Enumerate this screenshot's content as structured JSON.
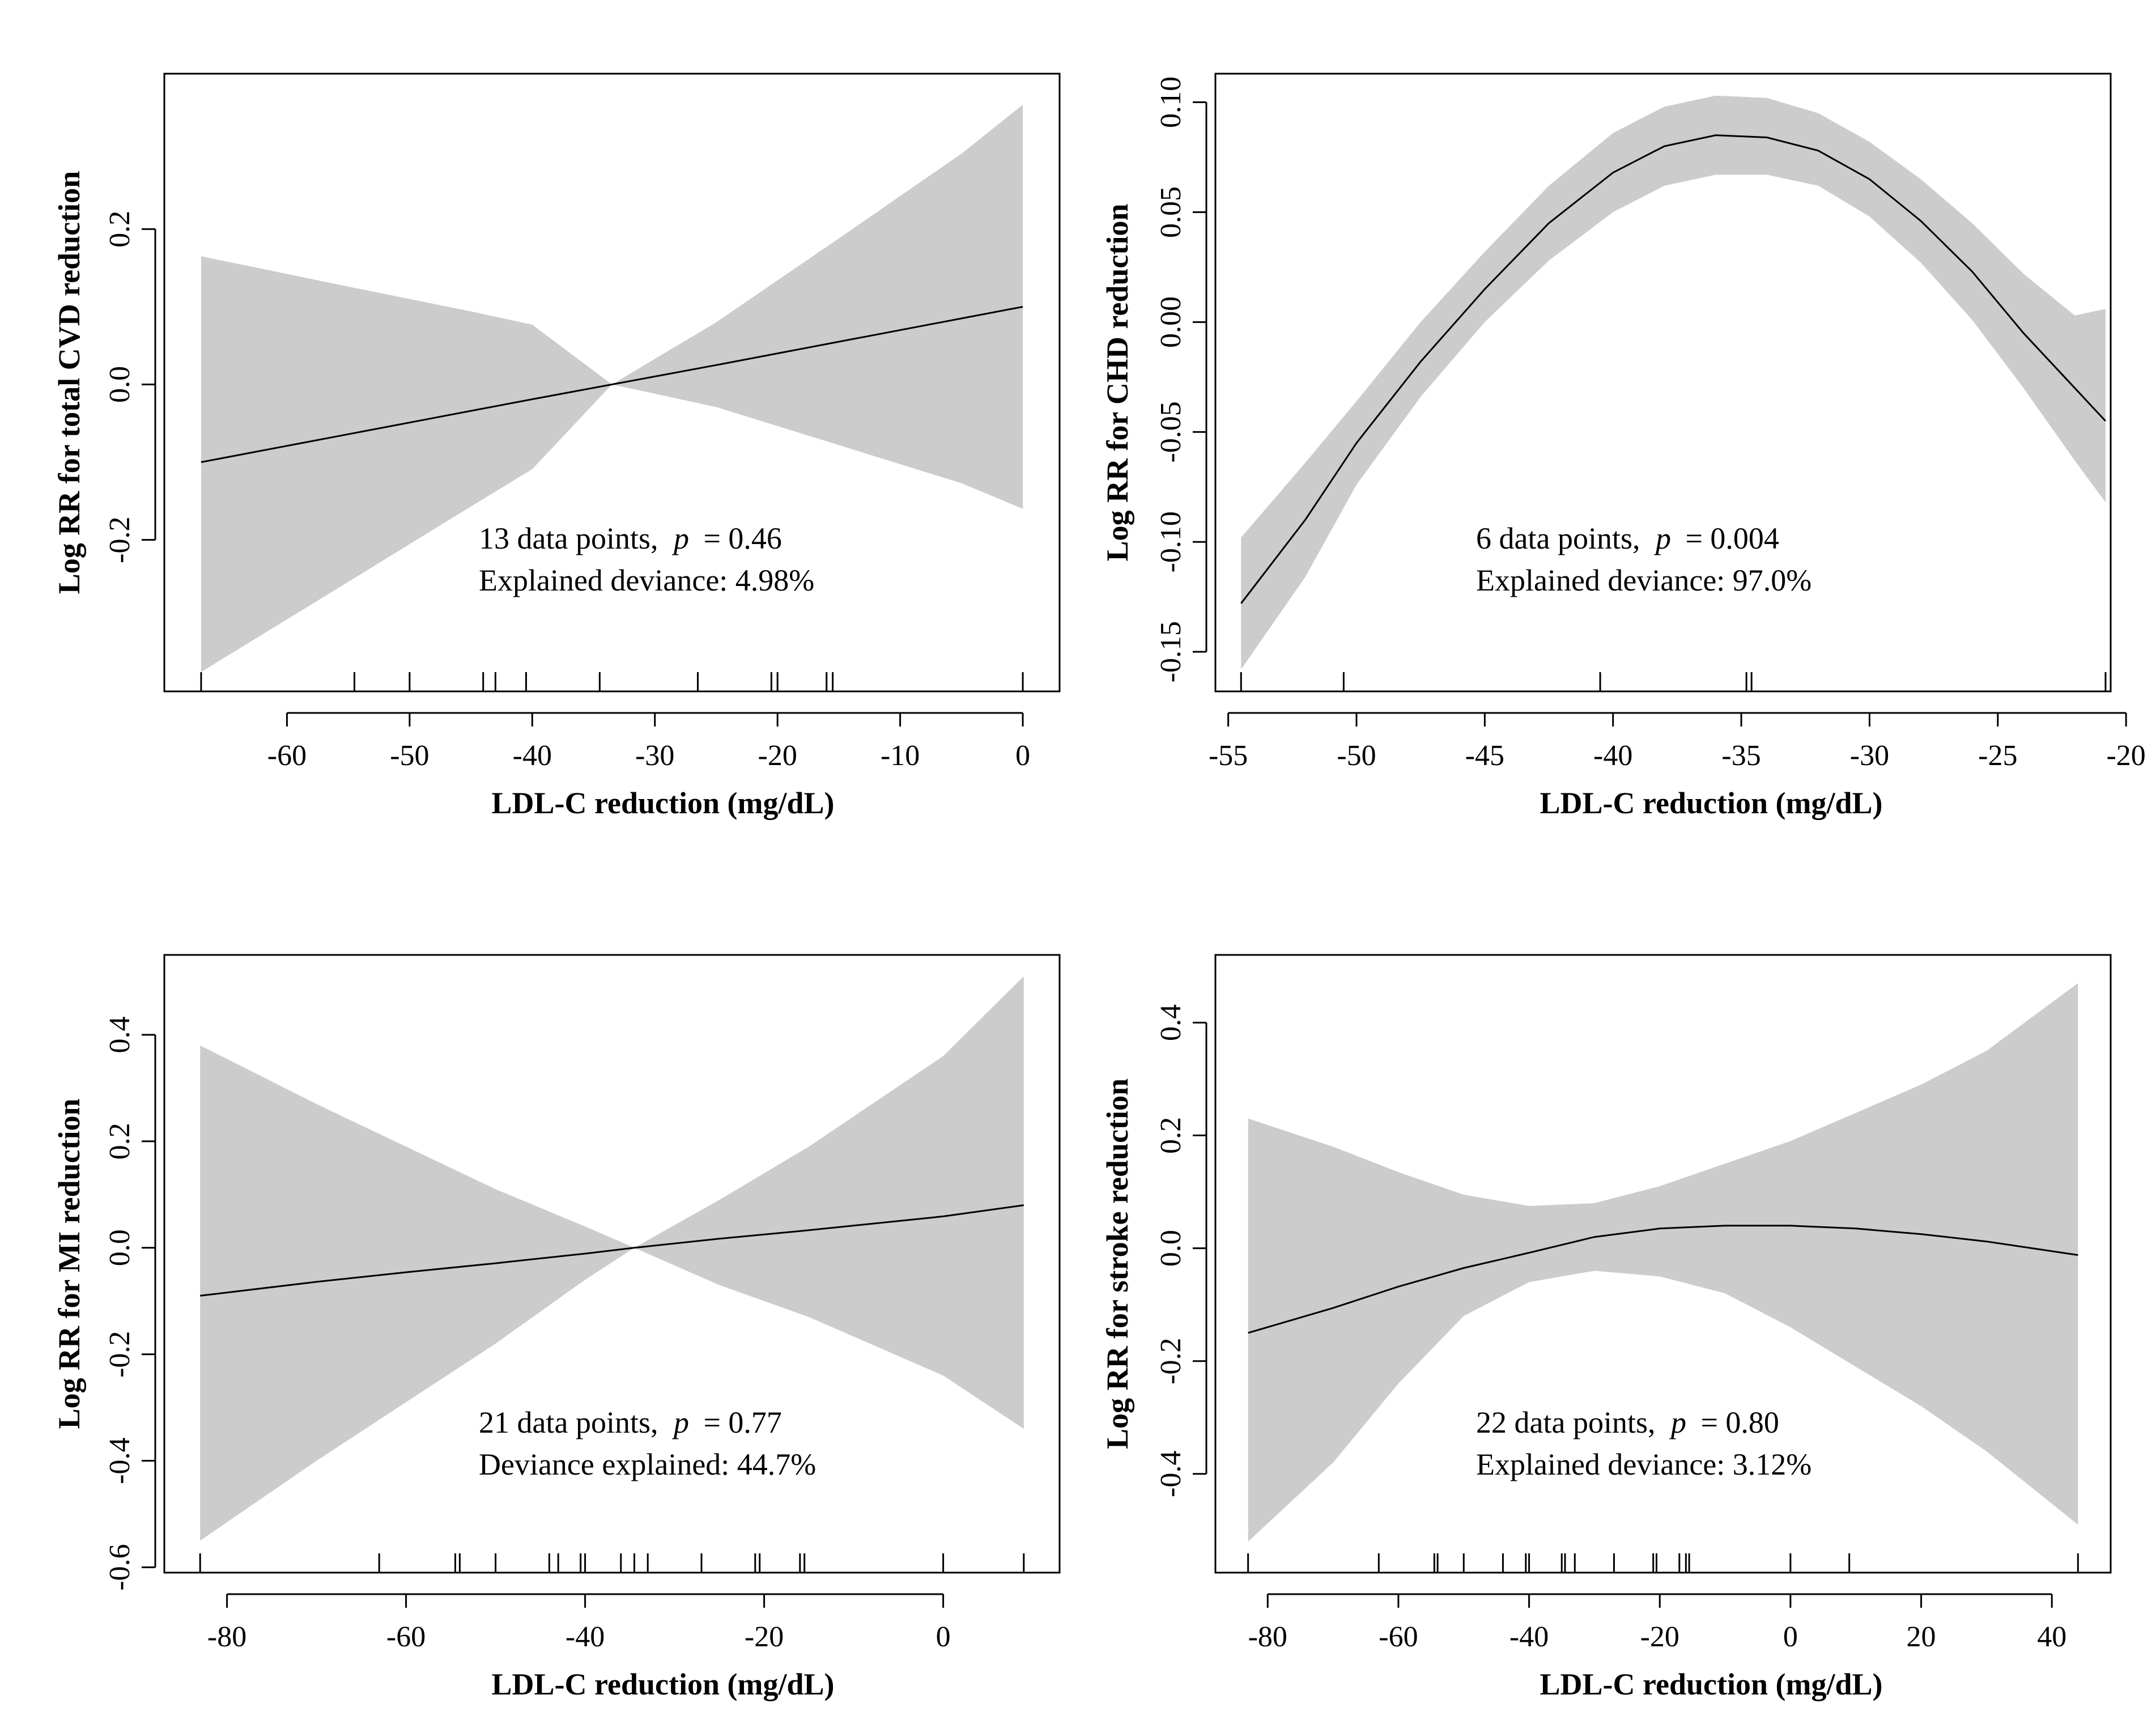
{
  "colors": {
    "band": "#cccccc",
    "line": "#000000",
    "background": "#ffffff"
  },
  "chart_data": [
    {
      "type": "line",
      "title": "",
      "xlabel": "LDL-C reduction (mg/dL)",
      "ylabel": "Log RR for total CVD reduction",
      "xlim": [
        -70,
        3
      ],
      "ylim": [
        -0.395,
        0.4
      ],
      "xticks": [
        -60,
        -50,
        -40,
        -30,
        -20,
        -10,
        0
      ],
      "xtick_labels": [
        "-60",
        "-50",
        "-40",
        "-30",
        "-20",
        "-10",
        "0"
      ],
      "yticks": [
        -0.2,
        0.0,
        0.2
      ],
      "ytick_labels": [
        "-0.2",
        "0.0",
        "0.2"
      ],
      "x": [
        -67,
        -55,
        -45,
        -40,
        -33.5,
        -25,
        -15,
        -5,
        0
      ],
      "y": [
        -0.1,
        -0.064,
        -0.034,
        -0.019,
        0.0,
        0.025,
        0.055,
        0.085,
        0.1
      ],
      "lower": [
        -0.37,
        -0.254,
        -0.157,
        -0.109,
        0.0,
        -0.029,
        -0.078,
        -0.127,
        -0.16
      ],
      "upper": [
        0.165,
        0.126,
        0.094,
        0.077,
        0.0,
        0.08,
        0.188,
        0.297,
        0.36
      ],
      "rug": [
        -67,
        -54.5,
        -50,
        -44,
        -43,
        -40.5,
        -34.5,
        -26.5,
        -20.5,
        -20,
        -16,
        -15.5,
        0
      ],
      "annotation": {
        "n_label": "13 data points,",
        "p_label": "p",
        "p_value": "= 0.46",
        "deviance": "Explained deviance: 4.98%"
      }
    },
    {
      "type": "line",
      "title": "",
      "xlabel": "LDL-C reduction (mg/dL)",
      "ylabel": "Log RR for CHD reduction",
      "xlim": [
        -55.5,
        -20.6
      ],
      "ylim": [
        -0.168,
        0.113
      ],
      "xticks": [
        -55,
        -50,
        -45,
        -40,
        -35,
        -30,
        -25,
        -20
      ],
      "xtick_labels": [
        "-55",
        "-50",
        "-45",
        "-40",
        "-35",
        "-30",
        "-25",
        "-20"
      ],
      "yticks": [
        -0.15,
        -0.1,
        -0.05,
        0.0,
        0.05,
        0.1
      ],
      "ytick_labels": [
        "-0.15",
        "-0.10",
        "-0.05",
        "0.00",
        "0.05",
        "0.10"
      ],
      "x": [
        -54.5,
        -52,
        -50,
        -47.5,
        -45,
        -42.5,
        -40,
        -38,
        -36,
        -34,
        -32,
        -30,
        -28,
        -26,
        -24,
        -22,
        -20.8
      ],
      "y": [
        -0.128,
        -0.09,
        -0.055,
        -0.018,
        0.015,
        0.045,
        0.068,
        0.08,
        0.085,
        0.084,
        0.078,
        0.065,
        0.046,
        0.023,
        -0.005,
        -0.03,
        -0.045
      ],
      "lower": [
        -0.158,
        -0.116,
        -0.074,
        -0.034,
        0.0,
        0.028,
        0.05,
        0.062,
        0.067,
        0.067,
        0.062,
        0.048,
        0.027,
        0.001,
        -0.03,
        -0.063,
        -0.082
      ],
      "upper": [
        -0.098,
        -0.064,
        -0.036,
        0.0,
        0.032,
        0.062,
        0.086,
        0.098,
        0.103,
        0.102,
        0.095,
        0.082,
        0.065,
        0.045,
        0.022,
        0.003,
        0.006
      ],
      "rug": [
        -54.5,
        -50.5,
        -40.5,
        -34.8,
        -34.6,
        -20.8
      ],
      "annotation": {
        "n_label": "6 data points,",
        "p_label": "p",
        "p_value": "= 0.004",
        "deviance": "Explained deviance: 97.0%"
      }
    },
    {
      "type": "line",
      "title": "",
      "xlabel": "LDL-C reduction (mg/dL)",
      "ylabel": "Log RR for MI reduction",
      "xlim": [
        -87,
        13
      ],
      "ylim": [
        -0.61,
        0.55
      ],
      "xticks": [
        -80,
        -60,
        -40,
        -20,
        0
      ],
      "xtick_labels": [
        "-80",
        "-60",
        "-40",
        "-20",
        "0"
      ],
      "yticks": [
        -0.6,
        -0.4,
        -0.2,
        0.0,
        0.2,
        0.4
      ],
      "ytick_labels": [
        "-0.6",
        "-0.4",
        "-0.2",
        "0.0",
        "0.2",
        "0.4"
      ],
      "x": [
        -83,
        -70,
        -60,
        -50,
        -40,
        -34.5,
        -25,
        -15,
        0,
        9
      ],
      "y": [
        -0.09,
        -0.064,
        -0.046,
        -0.029,
        -0.011,
        0.0,
        0.017,
        0.033,
        0.059,
        0.08
      ],
      "lower": [
        -0.55,
        -0.4,
        -0.29,
        -0.18,
        -0.06,
        0.0,
        -0.07,
        -0.13,
        -0.24,
        -0.34
      ],
      "upper": [
        0.38,
        0.27,
        0.19,
        0.11,
        0.04,
        0.0,
        0.09,
        0.19,
        0.36,
        0.51
      ],
      "rug": [
        -83,
        -63,
        -54.5,
        -54,
        -50,
        -44,
        -43,
        -40.5,
        -40,
        -36,
        -34.5,
        -33,
        -27,
        -21,
        -20.5,
        -16,
        -15.5,
        0,
        9
      ],
      "annotation": {
        "n_label": "21 data points,",
        "p_label": "p",
        "p_value": "= 0.77",
        "deviance": "Deviance explained: 44.7%"
      }
    },
    {
      "type": "line",
      "title": "",
      "xlabel": "LDL-C reduction (mg/dL)",
      "ylabel": "Log RR for stroke reduction",
      "xlim": [
        -88,
        49
      ],
      "ylim": [
        -0.575,
        0.52
      ],
      "xticks": [
        -80,
        -60,
        -40,
        -20,
        0,
        20,
        40
      ],
      "xtick_labels": [
        "-80",
        "-60",
        "-40",
        "-20",
        "0",
        "20",
        "40"
      ],
      "yticks": [
        -0.4,
        -0.2,
        0.0,
        0.2,
        0.4
      ],
      "ytick_labels": [
        "-0.4",
        "-0.2",
        "0.0",
        "0.2",
        "0.4"
      ],
      "x": [
        -83,
        -70,
        -60,
        -50,
        -40,
        -30,
        -20,
        -10,
        0,
        10,
        20,
        30,
        44
      ],
      "y": [
        -0.15,
        -0.106,
        -0.068,
        -0.035,
        -0.008,
        0.02,
        0.035,
        0.04,
        0.04,
        0.035,
        0.025,
        0.012,
        -0.012
      ],
      "lower": [
        -0.52,
        -0.38,
        -0.24,
        -0.12,
        -0.06,
        -0.04,
        -0.05,
        -0.08,
        -0.14,
        -0.21,
        -0.28,
        -0.36,
        -0.49
      ],
      "upper": [
        0.23,
        0.18,
        0.135,
        0.095,
        0.075,
        0.08,
        0.11,
        0.15,
        0.19,
        0.24,
        0.29,
        0.35,
        0.47
      ],
      "rug": [
        -83,
        -63,
        -54.5,
        -54,
        -50,
        -44,
        -40.5,
        -40,
        -35,
        -34.5,
        -33,
        -27,
        -21,
        -20.5,
        -17,
        -16,
        -15.5,
        0,
        9,
        44
      ],
      "annotation": {
        "n_label": "22 data points,",
        "p_label": "p",
        "p_value": "= 0.80",
        "deviance": "Explained deviance: 3.12%"
      }
    }
  ]
}
